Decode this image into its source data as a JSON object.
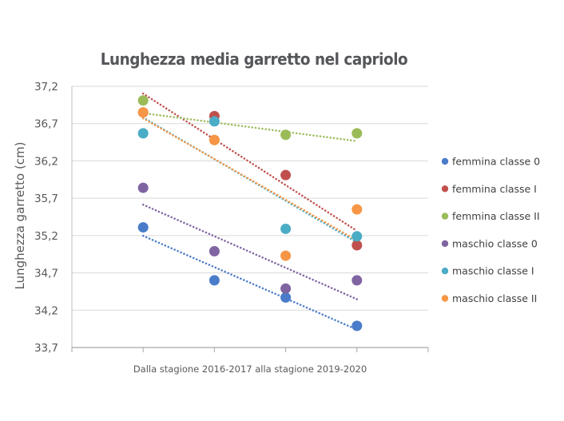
{
  "chart_data": {
    "type": "scatter",
    "title": "Lunghezza media garretto nel capriolo",
    "xlabel": "Dalla stagione 2016-2017 alla stagione 2019-2020",
    "ylabel": "Lunghezza garretto (cm)",
    "x": [
      1,
      2,
      3,
      4
    ],
    "ylim": [
      33.7,
      37.2
    ],
    "yticks": [
      "33,7",
      "34,2",
      "34,7",
      "35,2",
      "35,7",
      "36,2",
      "36,7",
      "37,2"
    ],
    "ytick_values": [
      33.7,
      34.2,
      34.7,
      35.2,
      35.7,
      36.2,
      36.7,
      37.2
    ],
    "grid": true,
    "legend_position": "right",
    "trendlines": "linear, dotted",
    "series": [
      {
        "name": "femmina classe 0",
        "color": "#4a7cc9",
        "values": [
          35.31,
          34.6,
          34.37,
          33.99
        ]
      },
      {
        "name": "femmina classe I",
        "color": "#c0504d",
        "values": [
          36.85,
          36.8,
          36.01,
          35.07
        ]
      },
      {
        "name": "femmina classe II",
        "color": "#9bbb59",
        "values": [
          37.01,
          36.48,
          36.55,
          36.57
        ]
      },
      {
        "name": "maschio classe 0",
        "color": "#8064a2",
        "values": [
          35.84,
          34.99,
          34.49,
          34.6
        ]
      },
      {
        "name": "maschio classe I",
        "color": "#4bacc6",
        "values": [
          36.57,
          36.73,
          35.29,
          35.19
        ]
      },
      {
        "name": "maschio classe II",
        "color": "#f79646",
        "values": [
          36.85,
          36.48,
          34.93,
          35.55
        ]
      }
    ]
  }
}
